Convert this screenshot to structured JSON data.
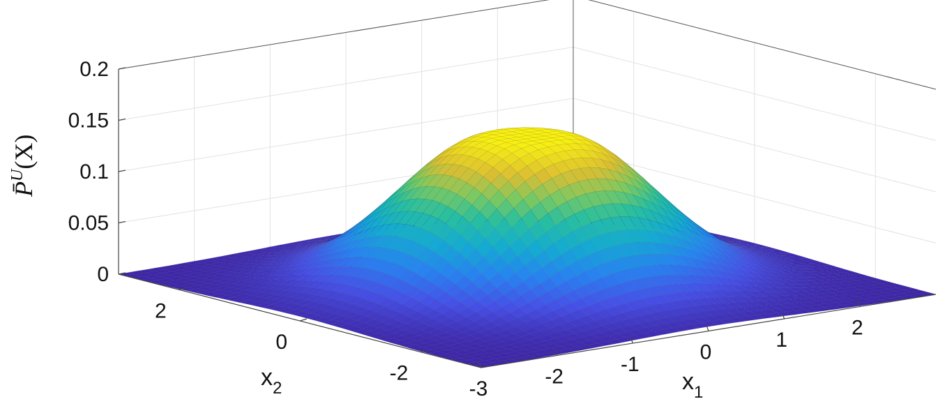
{
  "chart_data": {
    "type": "surface",
    "colormap": "parula",
    "x1": {
      "label_base": "x",
      "label_sub": "1",
      "range": [
        -3,
        3
      ],
      "ticks": [
        -3,
        -2,
        -1,
        0,
        1,
        2
      ],
      "tick_labels": [
        "-3",
        "-2",
        "-1",
        "0",
        "1",
        "2"
      ]
    },
    "x2": {
      "label_base": "x",
      "label_sub": "2",
      "range": [
        -3,
        3
      ],
      "ticks": [
        -2,
        0,
        2
      ],
      "tick_labels": [
        "-2",
        "0",
        "2"
      ]
    },
    "z": {
      "label_main": "P̄",
      "label_sup": "U",
      "label_arg": "(X)",
      "range": [
        0,
        0.2
      ],
      "ticks": [
        0,
        0.05,
        0.1,
        0.15,
        0.2
      ],
      "tick_labels": [
        "0",
        "0.05",
        "0.1",
        "0.15",
        "0.2"
      ]
    },
    "surface": {
      "peak_value": 0.145,
      "peak_location": [
        0,
        0
      ],
      "plateau_radius": 0.35,
      "spread": 1.0
    },
    "grid": true
  }
}
